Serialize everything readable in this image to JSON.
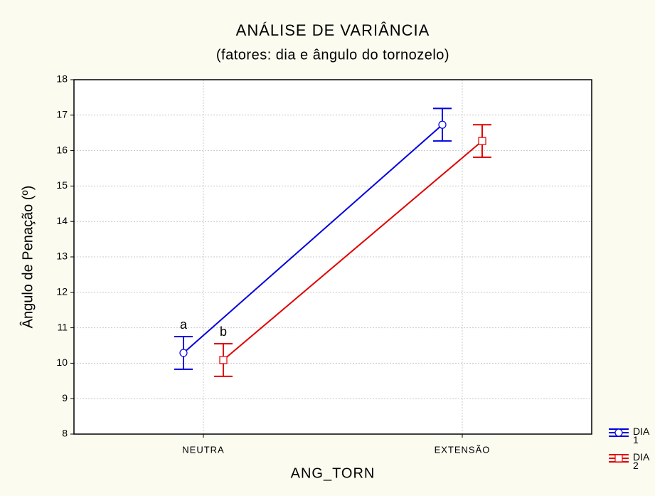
{
  "chart_data": {
    "type": "line",
    "title": "ANÁLISE DE VARIÂNCIA",
    "subtitle": "(fatores: dia e ângulo do tornozelo)",
    "x_label": "ANG_TORN",
    "y_label": "Ângulo de Penação (º)",
    "categories": [
      "NEUTRA",
      "EXTENSÃO"
    ],
    "series": [
      {
        "name": "DIA 1",
        "color": "#0000e0",
        "marker": "circle",
        "values": [
          10.29,
          16.73
        ],
        "errors": [
          0.46,
          0.46
        ]
      },
      {
        "name": "DIA 2",
        "color": "#e00000",
        "marker": "square",
        "values": [
          10.09,
          16.27
        ],
        "errors": [
          0.46,
          0.46
        ]
      }
    ],
    "annotations": [
      {
        "text": "a",
        "series": 0,
        "category": 0
      },
      {
        "text": "b",
        "series": 1,
        "category": 0
      }
    ],
    "ylim": [
      8,
      18
    ],
    "yticks": [
      8,
      9,
      10,
      11,
      12,
      13,
      14,
      15,
      16,
      17,
      18
    ],
    "grid": true,
    "legend": "lower-right"
  }
}
